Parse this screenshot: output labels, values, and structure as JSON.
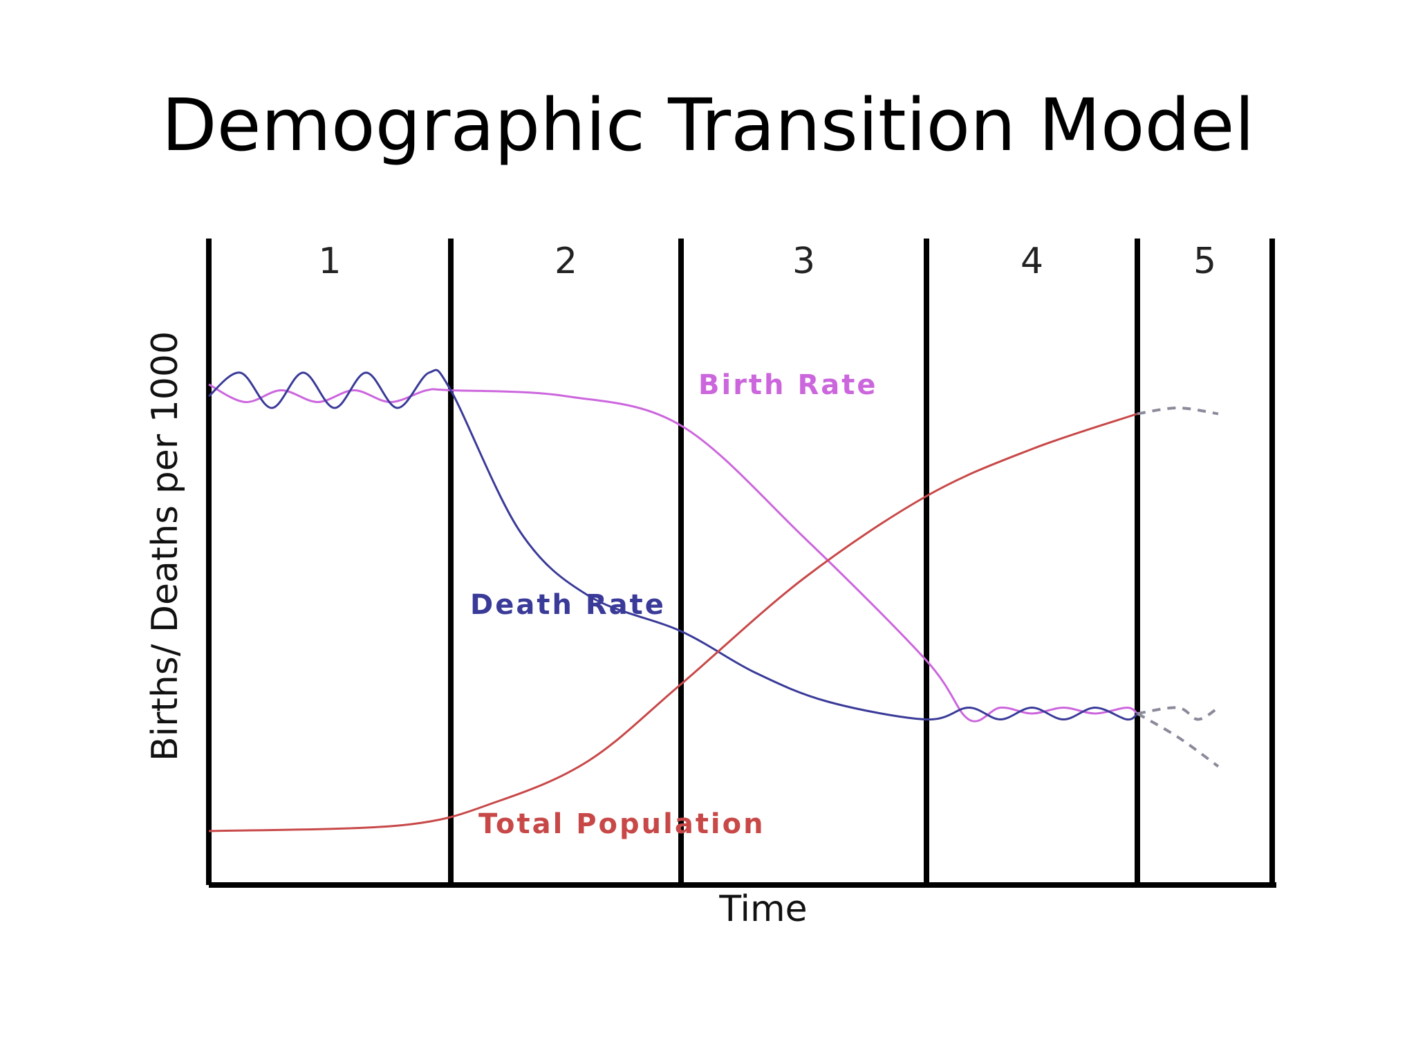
{
  "slide": {
    "title": "Demographic Transition Model"
  },
  "chart_data": {
    "type": "line",
    "title": "Demographic Transition Model",
    "xlabel": "Time",
    "ylabel": "Births/ Deaths per 1000",
    "stages": [
      "1",
      "2",
      "3",
      "4",
      "5"
    ],
    "xlim": [
      0,
      5
    ],
    "ylim": [
      0,
      1
    ],
    "grid": false,
    "legend": "inline labels",
    "colors": {
      "birth": "#cc66dd",
      "death": "#3a3a99",
      "population": "#c84848",
      "dashed": "#8a8a9a",
      "axes": "#000000"
    },
    "series": [
      {
        "name": "Birth Rate",
        "style": "solid",
        "points": [
          [
            0,
            0.84
          ],
          [
            0.15,
            0.81
          ],
          [
            0.3,
            0.83
          ],
          [
            0.45,
            0.81
          ],
          [
            0.6,
            0.83
          ],
          [
            0.75,
            0.81
          ],
          [
            0.9,
            0.83
          ],
          [
            1.0,
            0.83
          ],
          [
            1.5,
            0.82
          ],
          [
            2.0,
            0.77
          ],
          [
            2.5,
            0.58
          ],
          [
            3.0,
            0.37
          ],
          [
            3.2,
            0.27
          ],
          [
            3.35,
            0.29
          ],
          [
            3.5,
            0.28
          ],
          [
            3.65,
            0.29
          ],
          [
            3.8,
            0.28
          ],
          [
            3.95,
            0.29
          ],
          [
            4.0,
            0.28
          ]
        ]
      },
      {
        "name": "Death Rate",
        "style": "solid",
        "points": [
          [
            0,
            0.82
          ],
          [
            0.13,
            0.86
          ],
          [
            0.26,
            0.8
          ],
          [
            0.39,
            0.86
          ],
          [
            0.52,
            0.8
          ],
          [
            0.65,
            0.86
          ],
          [
            0.78,
            0.8
          ],
          [
            0.91,
            0.86
          ],
          [
            1.0,
            0.83
          ],
          [
            1.3,
            0.59
          ],
          [
            1.6,
            0.48
          ],
          [
            2.0,
            0.42
          ],
          [
            2.3,
            0.35
          ],
          [
            2.6,
            0.3
          ],
          [
            3.0,
            0.27
          ],
          [
            3.2,
            0.29
          ],
          [
            3.35,
            0.27
          ],
          [
            3.5,
            0.29
          ],
          [
            3.65,
            0.27
          ],
          [
            3.8,
            0.29
          ],
          [
            3.95,
            0.27
          ],
          [
            4.0,
            0.28
          ]
        ]
      },
      {
        "name": "Total Population",
        "style": "solid",
        "points": [
          [
            0,
            0.08
          ],
          [
            0.8,
            0.09
          ],
          [
            1.2,
            0.13
          ],
          [
            1.6,
            0.2
          ],
          [
            2.0,
            0.33
          ],
          [
            2.5,
            0.51
          ],
          [
            3.0,
            0.65
          ],
          [
            3.5,
            0.73
          ],
          [
            4.0,
            0.79
          ]
        ]
      },
      {
        "name": "",
        "style": "dashed",
        "points": [
          [
            4.0,
            0.79
          ],
          [
            4.3,
            0.8
          ],
          [
            4.6,
            0.79
          ]
        ]
      },
      {
        "name": "",
        "style": "dashed",
        "points": [
          [
            4.0,
            0.28
          ],
          [
            4.3,
            0.29
          ],
          [
            4.45,
            0.27
          ],
          [
            4.6,
            0.29
          ]
        ]
      },
      {
        "name": "",
        "style": "dashed",
        "points": [
          [
            4.0,
            0.28
          ],
          [
            4.3,
            0.24
          ],
          [
            4.6,
            0.19
          ]
        ]
      }
    ],
    "series_labels": {
      "birth": "Birth Rate",
      "death": "Death Rate",
      "population": "Total Population"
    }
  }
}
